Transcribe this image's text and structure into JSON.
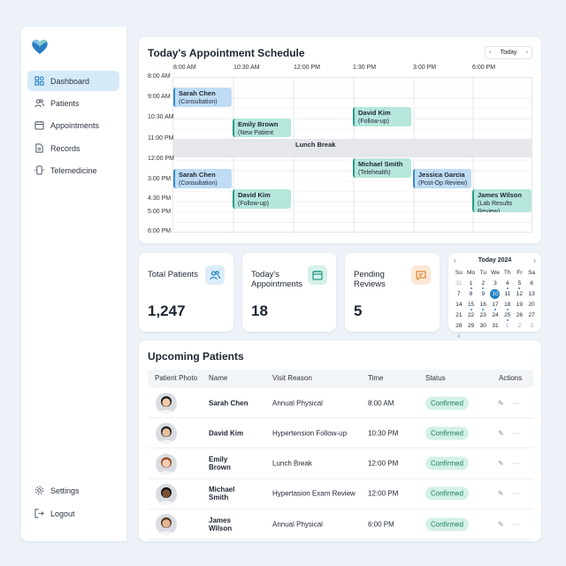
{
  "sidebar": {
    "items": [
      {
        "label": "Dashboard",
        "icon": "dashboard-icon",
        "active": true
      },
      {
        "label": "Patients",
        "icon": "users-icon"
      },
      {
        "label": "Appointments",
        "icon": "calendar-icon"
      },
      {
        "label": "Records",
        "icon": "document-icon"
      },
      {
        "label": "Telemedicine",
        "icon": "phone-icon"
      }
    ],
    "bottom": [
      {
        "label": "Settings",
        "icon": "gear-icon"
      },
      {
        "label": "Logout",
        "icon": "logout-icon"
      }
    ]
  },
  "schedule": {
    "title": "Today's Appointment Schedule",
    "today_label": "Today",
    "columns": [
      "8:00 AM",
      "10:30 AM",
      "12:00 PM",
      "1:30 PM",
      "3:00 PM",
      "6:00 PM"
    ],
    "rows": [
      "8:00 AM",
      "9:00 AM",
      "10:30 AM",
      "11:00 PM",
      "12:00 PM",
      "3:00 PM",
      "4:30 PM",
      "5:00 PM",
      "6:00 PM"
    ],
    "events": [
      {
        "name": "Sarah Chen",
        "reason": "(Consultation)",
        "color": "blue"
      },
      {
        "name": "Emily Brown",
        "reason": "(New Patient Exam)",
        "color": "teal"
      },
      {
        "name": "David Kim",
        "reason": "(Follow-up)",
        "color": "teal"
      },
      {
        "name": "Michael Smith",
        "reason": "(Telehealth)",
        "color": "teal"
      },
      {
        "name": "Sarah Chen",
        "reason": "(Consultation)",
        "color": "blue"
      },
      {
        "name": "Jessica Garcia",
        "reason": "(Post-Op Review)",
        "color": "blue"
      },
      {
        "name": "David Kim",
        "reason": "(Follow-up)",
        "color": "teal"
      },
      {
        "name": "James Wilson",
        "reason": "(Lab Results Review)",
        "color": "teal"
      }
    ],
    "lunch": "Lunch Break"
  },
  "stats": [
    {
      "label": "Total Patients",
      "value": "1,247",
      "icon": "users-icon",
      "color": "#2a86c7"
    },
    {
      "label": "Today's Appointments",
      "value": "18",
      "icon": "calendar-icon",
      "color": "#2a9c88"
    },
    {
      "label": "Pending Reviews",
      "value": "5",
      "icon": "message-icon",
      "color": "#e08a3c"
    }
  ],
  "calendar": {
    "title": "Today 2024",
    "weekdays": [
      "Su",
      "Mo",
      "Tu",
      "We",
      "Th",
      "Fr",
      "Sa"
    ],
    "days": [
      31,
      1,
      2,
      3,
      4,
      5,
      6,
      7,
      8,
      9,
      10,
      11,
      12,
      13,
      14,
      15,
      16,
      17,
      18,
      19,
      20,
      21,
      22,
      23,
      24,
      25,
      26,
      27,
      28,
      29,
      30,
      31,
      1,
      2,
      3,
      4
    ],
    "today": 10,
    "event_days": [
      1,
      2,
      4,
      5,
      15,
      16,
      17,
      18,
      25
    ]
  },
  "upcoming": {
    "title": "Upcoming Patients",
    "headers": [
      "Patient Photo",
      "Name",
      "Visit Reason",
      "Time",
      "Status",
      "Actions"
    ],
    "rows": [
      {
        "name": "Sarah Chen",
        "reason": "Annual Physical",
        "time": "8:00 AM",
        "status": "Confirmed"
      },
      {
        "name": "David Kim",
        "reason": "Hypertension Follow-up",
        "time": "10:30 PM",
        "status": "Confirmed"
      },
      {
        "name": "Emily Brown",
        "reason": "Lunch Break",
        "time": "12:00 PM",
        "status": "Confirmed"
      },
      {
        "name": "Michael Smith",
        "reason": "Hypertasion Exam Review",
        "time": "12:00 PM",
        "status": "Confirmed"
      },
      {
        "name": "James Wilson",
        "reason": "Annual Physical",
        "time": "6:00 PM",
        "status": "Confirmed"
      }
    ]
  }
}
